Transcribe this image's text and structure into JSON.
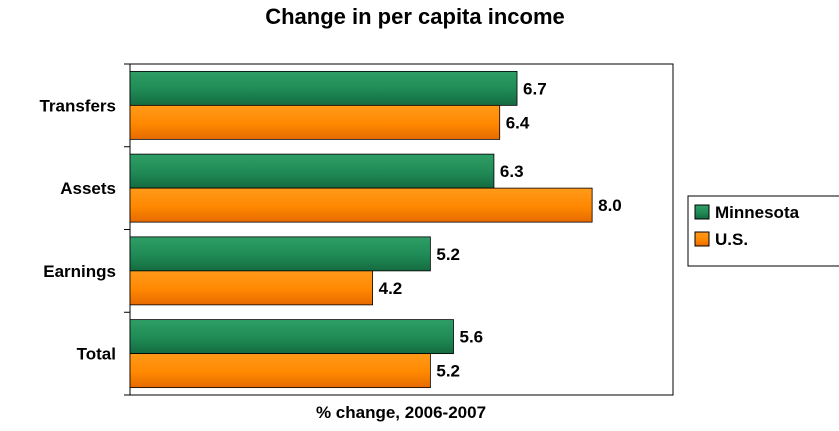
{
  "chart_data": {
    "type": "bar",
    "orientation": "horizontal",
    "title": "Change in per capita income",
    "xlabel": "% change, 2006-2007",
    "ylabel": "",
    "categories": [
      "Transfers",
      "Assets",
      "Earnings",
      "Total"
    ],
    "series": [
      {
        "name": "Minnesota",
        "values": [
          6.7,
          6.3,
          5.2,
          5.6
        ],
        "labels": [
          "6.7",
          "6.3",
          "5.2",
          "5.6"
        ],
        "color": "#1f8a55"
      },
      {
        "name": "U.S.",
        "values": [
          6.4,
          8.0,
          4.2,
          5.2
        ],
        "labels": [
          "6.4",
          "8.0",
          "4.2",
          "5.2"
        ],
        "color": "#ff8800"
      }
    ],
    "xlim": [
      0,
      9.4
    ],
    "grid": false,
    "legend_position": "right"
  }
}
